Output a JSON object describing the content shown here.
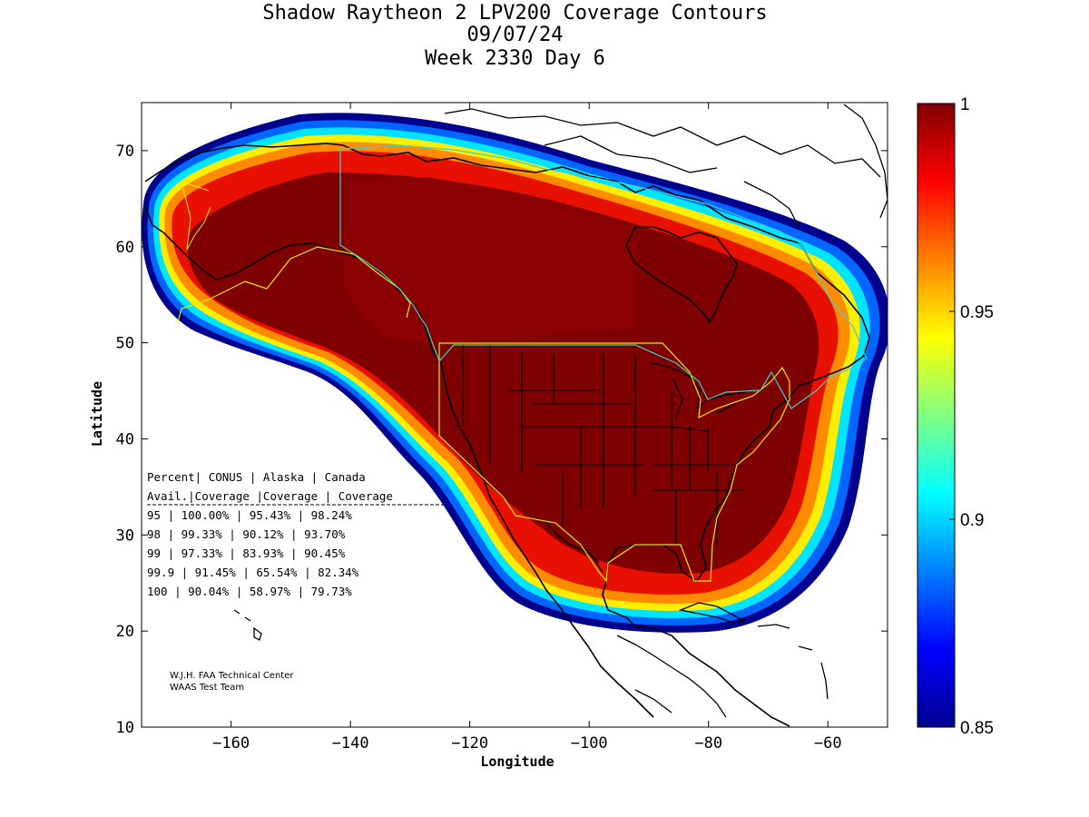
{
  "title": {
    "line1": "Shadow Raytheon 2 LPV200 Coverage Contours",
    "line2": "09/07/24",
    "line3": "Week 2330 Day 6"
  },
  "axes": {
    "xlabel": "Longitude",
    "ylabel": "Latitude",
    "xlim": [
      -175,
      -50
    ],
    "ylim": [
      10,
      75
    ],
    "xticks": [
      -160,
      -140,
      -120,
      -100,
      -80,
      -60
    ],
    "yticks": [
      10,
      20,
      30,
      40,
      50,
      60,
      70
    ]
  },
  "colorbar": {
    "range": [
      0.85,
      1
    ],
    "ticks": [
      "1",
      "0.95",
      "0.9",
      "0.85"
    ],
    "tick_values": [
      1,
      0.95,
      0.9,
      0.85
    ],
    "colormap": "jet"
  },
  "coverage_table": {
    "header1": "Percent| CONUS   | Alaska  | Canada",
    "header2": " Avail.|Coverage |Coverage | Coverage",
    "rows": [
      "  95   | 100.00%  | 95.43% | 98.24%",
      "  98   | 99.33%  | 90.12% | 93.70%",
      "  99   | 97.33%  | 83.93% | 90.45%",
      "99.9   | 91.45%  | 65.54% | 82.34%",
      " 100   | 90.04%  | 58.97% | 79.73%"
    ]
  },
  "credit": {
    "line1": "W.J.H. FAA Technical Center",
    "line2": "WAAS Test Team"
  },
  "colors": {
    "deep_red": "#7f0000",
    "red": "#d40000",
    "orange": "#ff8000",
    "yellow": "#ffff00",
    "cyan": "#00ffff",
    "blue": "#0000ff",
    "navy": "#00008f",
    "border_yellow": "#e8e800",
    "border_cyan": "#40d0d0"
  }
}
